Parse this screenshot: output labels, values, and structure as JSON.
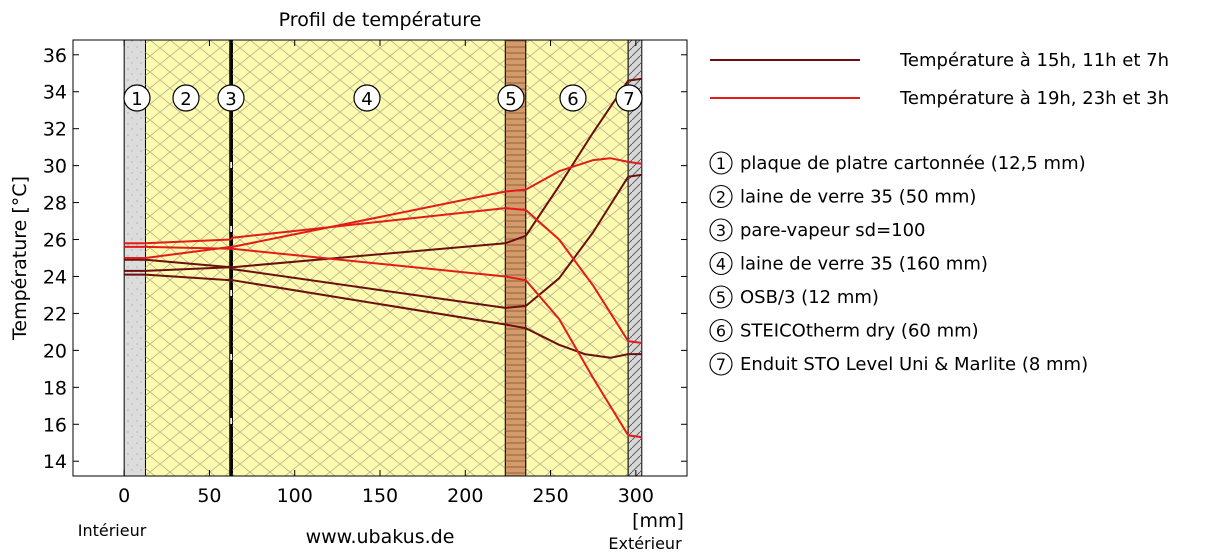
{
  "chart_data": {
    "type": "line",
    "title": "Profil de température",
    "ylabel": "Température [°C]",
    "xlabel": "[mm]",
    "x_ticks": [
      0,
      50,
      100,
      150,
      200,
      250,
      300
    ],
    "y_ticks": [
      14,
      16,
      18,
      20,
      22,
      24,
      26,
      28,
      30,
      32,
      34,
      36
    ],
    "xlim": [
      -30,
      330
    ],
    "ylim": [
      13.2,
      36.8
    ],
    "grid": false,
    "legend_position": "right",
    "left_caption": "Intérieur",
    "right_caption": "Extérieur",
    "footer": "www.ubakus.de",
    "colors": {
      "dark_series": "#6b0f0f",
      "light_series": "#e21b1b",
      "insulation_fill": "#fdfbb0",
      "insulation_lines": "#b5b08a",
      "plaster_fill": "#dcdcdc",
      "osb_fill": "#d49a6a",
      "render_fill": "#d7d7d7"
    },
    "layers": [
      {
        "num": "1",
        "name": "plaque de platre cartonnée (12,5 mm)",
        "x0": 0,
        "x1": 12.5,
        "kind": "plaster"
      },
      {
        "num": "2",
        "name": "laine de verre 35 (50 mm)",
        "x0": 12.5,
        "x1": 62.5,
        "kind": "insulation"
      },
      {
        "num": "3",
        "name": "pare-vapeur sd=100",
        "x0": 62.5,
        "x1": 63.5,
        "kind": "membrane"
      },
      {
        "num": "4",
        "name": "laine de verre 35 (160 mm)",
        "x0": 63.5,
        "x1": 223.5,
        "kind": "insulation"
      },
      {
        "num": "5",
        "name": "OSB/3 (12 mm)",
        "x0": 223.5,
        "x1": 235.5,
        "kind": "osb"
      },
      {
        "num": "6",
        "name": "STEICOtherm dry (60 mm)",
        "x0": 235.5,
        "x1": 295.5,
        "kind": "insulation"
      },
      {
        "num": "7",
        "name": "Enduit STO Level Uni & Marlite (8 mm)",
        "x0": 295.5,
        "x1": 303.5,
        "kind": "render"
      }
    ],
    "legend": [
      {
        "label": "Température à 15h, 11h et 7h",
        "color": "#6b0f0f"
      },
      {
        "label": "Température à 19h, 23h et 3h",
        "color": "#e21b1b"
      }
    ],
    "series": [
      {
        "color": "#6b0f0f",
        "x": [
          0,
          12.5,
          62.5,
          63.5,
          223.5,
          235.5,
          255,
          275,
          295.5,
          303.5
        ],
        "y": [
          24.3,
          24.3,
          24.5,
          24.5,
          25.8,
          26.2,
          28.9,
          31.8,
          34.6,
          34.7
        ]
      },
      {
        "color": "#6b0f0f",
        "x": [
          0,
          12.5,
          62.5,
          63.5,
          223.5,
          235.5,
          255,
          275,
          295.5,
          303.5
        ],
        "y": [
          24.9,
          24.9,
          24.5,
          24.4,
          22.3,
          22.4,
          23.9,
          26.4,
          29.4,
          29.5
        ]
      },
      {
        "color": "#6b0f0f",
        "x": [
          0,
          12.5,
          62.5,
          63.5,
          223.5,
          235.5,
          255,
          270,
          285,
          295.5,
          303.5
        ],
        "y": [
          24.1,
          24.1,
          23.8,
          23.8,
          21.4,
          21.2,
          20.3,
          19.8,
          19.6,
          19.8,
          19.8
        ]
      },
      {
        "color": "#e21b1b",
        "x": [
          0,
          12.5,
          62.5,
          63.5,
          223.5,
          235.5,
          255,
          275,
          285,
          295.5,
          303.5
        ],
        "y": [
          25.0,
          25.0,
          25.6,
          25.6,
          28.6,
          28.7,
          29.7,
          30.3,
          30.4,
          30.2,
          30.1
        ]
      },
      {
        "color": "#e21b1b",
        "x": [
          0,
          12.5,
          62.5,
          63.5,
          223.5,
          235.5,
          255,
          275,
          295.5,
          303.5
        ],
        "y": [
          25.8,
          25.8,
          26.0,
          26.1,
          27.7,
          27.6,
          26.0,
          23.5,
          20.5,
          20.4
        ]
      },
      {
        "color": "#e21b1b",
        "x": [
          0,
          12.5,
          62.5,
          63.5,
          223.5,
          235.5,
          255,
          275,
          295.5,
          303.5
        ],
        "y": [
          25.6,
          25.6,
          25.5,
          25.5,
          24.0,
          23.8,
          21.7,
          18.5,
          15.4,
          15.3
        ]
      }
    ]
  }
}
